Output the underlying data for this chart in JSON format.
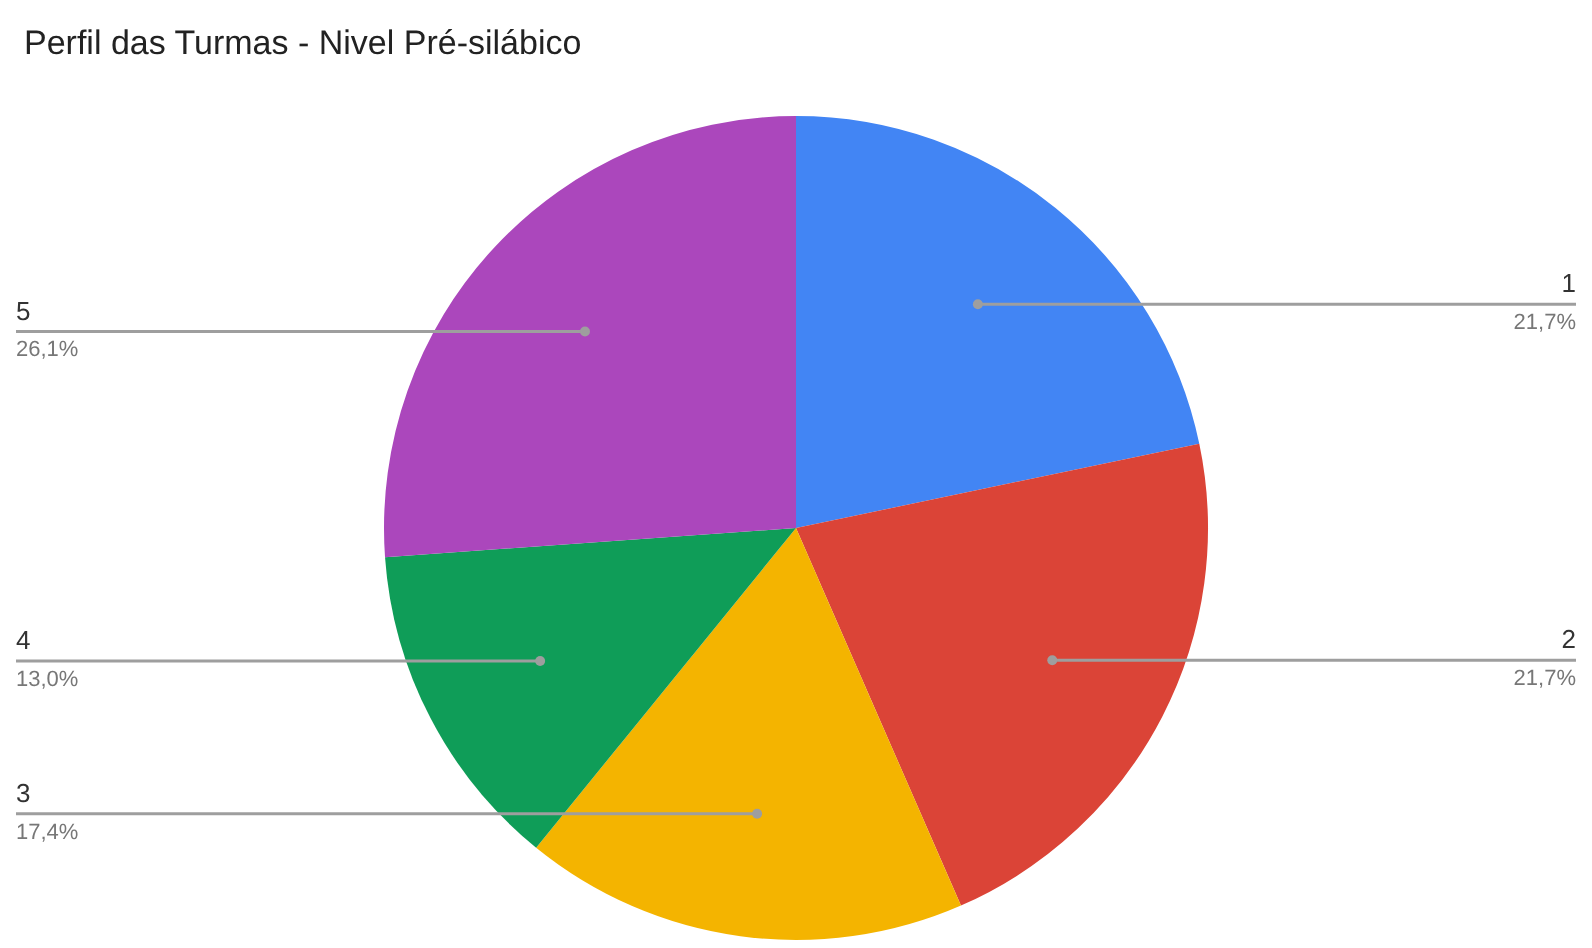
{
  "chart_data": {
    "type": "pie",
    "title": "Perfil das Turmas - Nivel Pré-silábico",
    "categories": [
      "1",
      "2",
      "3",
      "4",
      "5"
    ],
    "values": [
      21.7,
      21.7,
      17.4,
      13.0,
      26.1
    ],
    "value_labels": [
      "21,7%",
      "21,7%",
      "17,4%",
      "13,0%",
      "26,1%"
    ],
    "colors": [
      "#4285f4",
      "#db4437",
      "#f4b400",
      "#0f9d58",
      "#ab47bc"
    ],
    "legend": false
  }
}
